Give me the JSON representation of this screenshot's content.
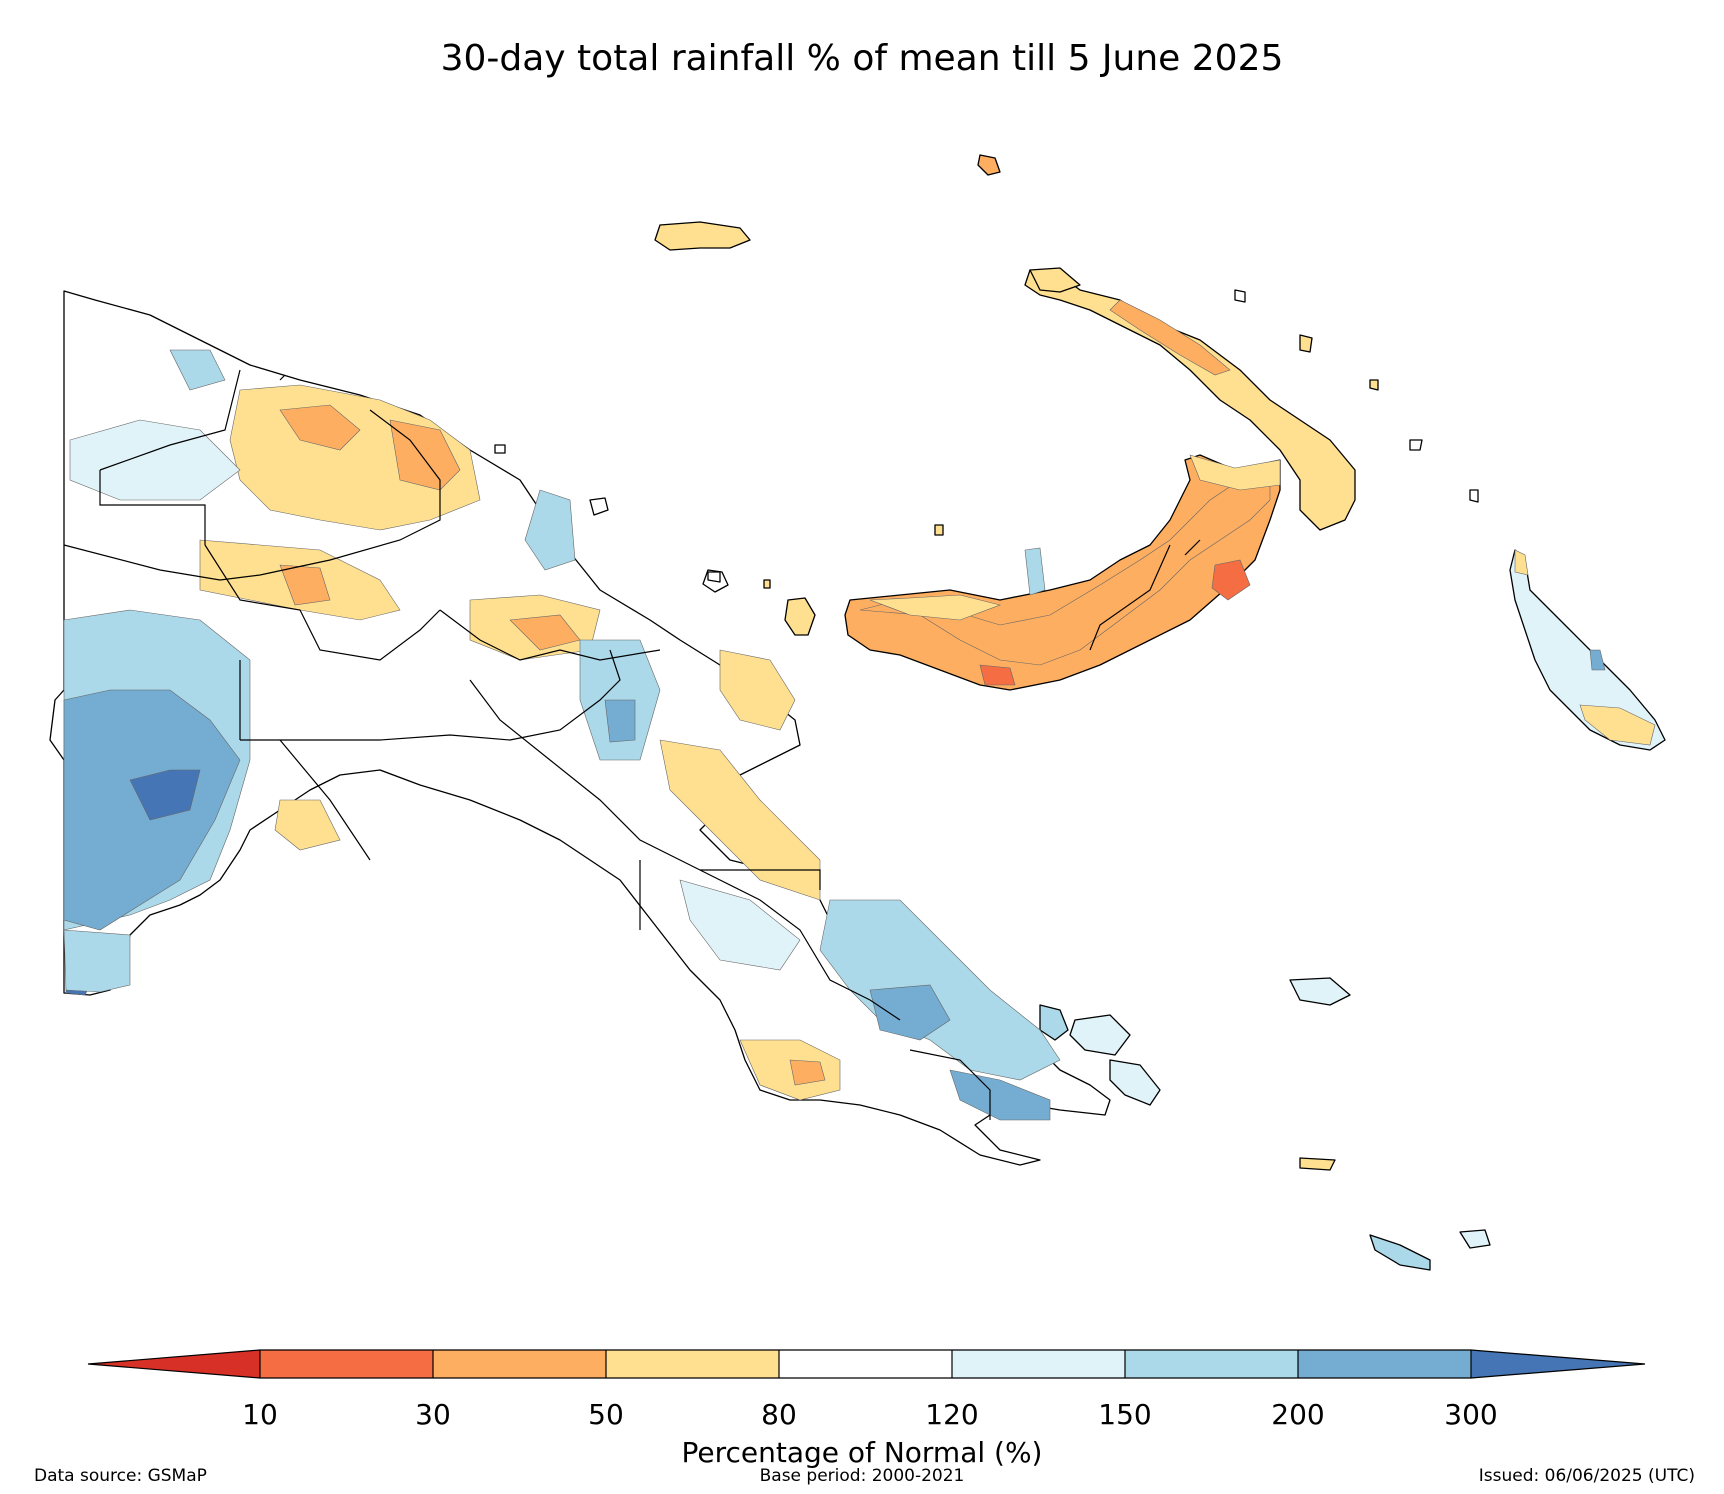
{
  "title": "30-day total rainfall % of mean till 5 June 2025",
  "colorbar": {
    "label": "Percentage of Normal (%)",
    "ticks": [
      "10",
      "30",
      "50",
      "80",
      "120",
      "150",
      "200",
      "300"
    ],
    "colors": {
      "below_10": "#d73027",
      "10_30": "#f46d43",
      "30_50": "#fdae61",
      "50_80": "#fee090",
      "80_120": "#ffffff",
      "120_150": "#e0f3f8",
      "150_200": "#abd9e9",
      "200_300": "#74add1",
      "above_300": "#4575b4"
    }
  },
  "footer": {
    "source": "Data source: GSMaP",
    "base_period": "Base period: 2000-2021",
    "issued": "Issued: 06/06/2025 (UTC)"
  }
}
